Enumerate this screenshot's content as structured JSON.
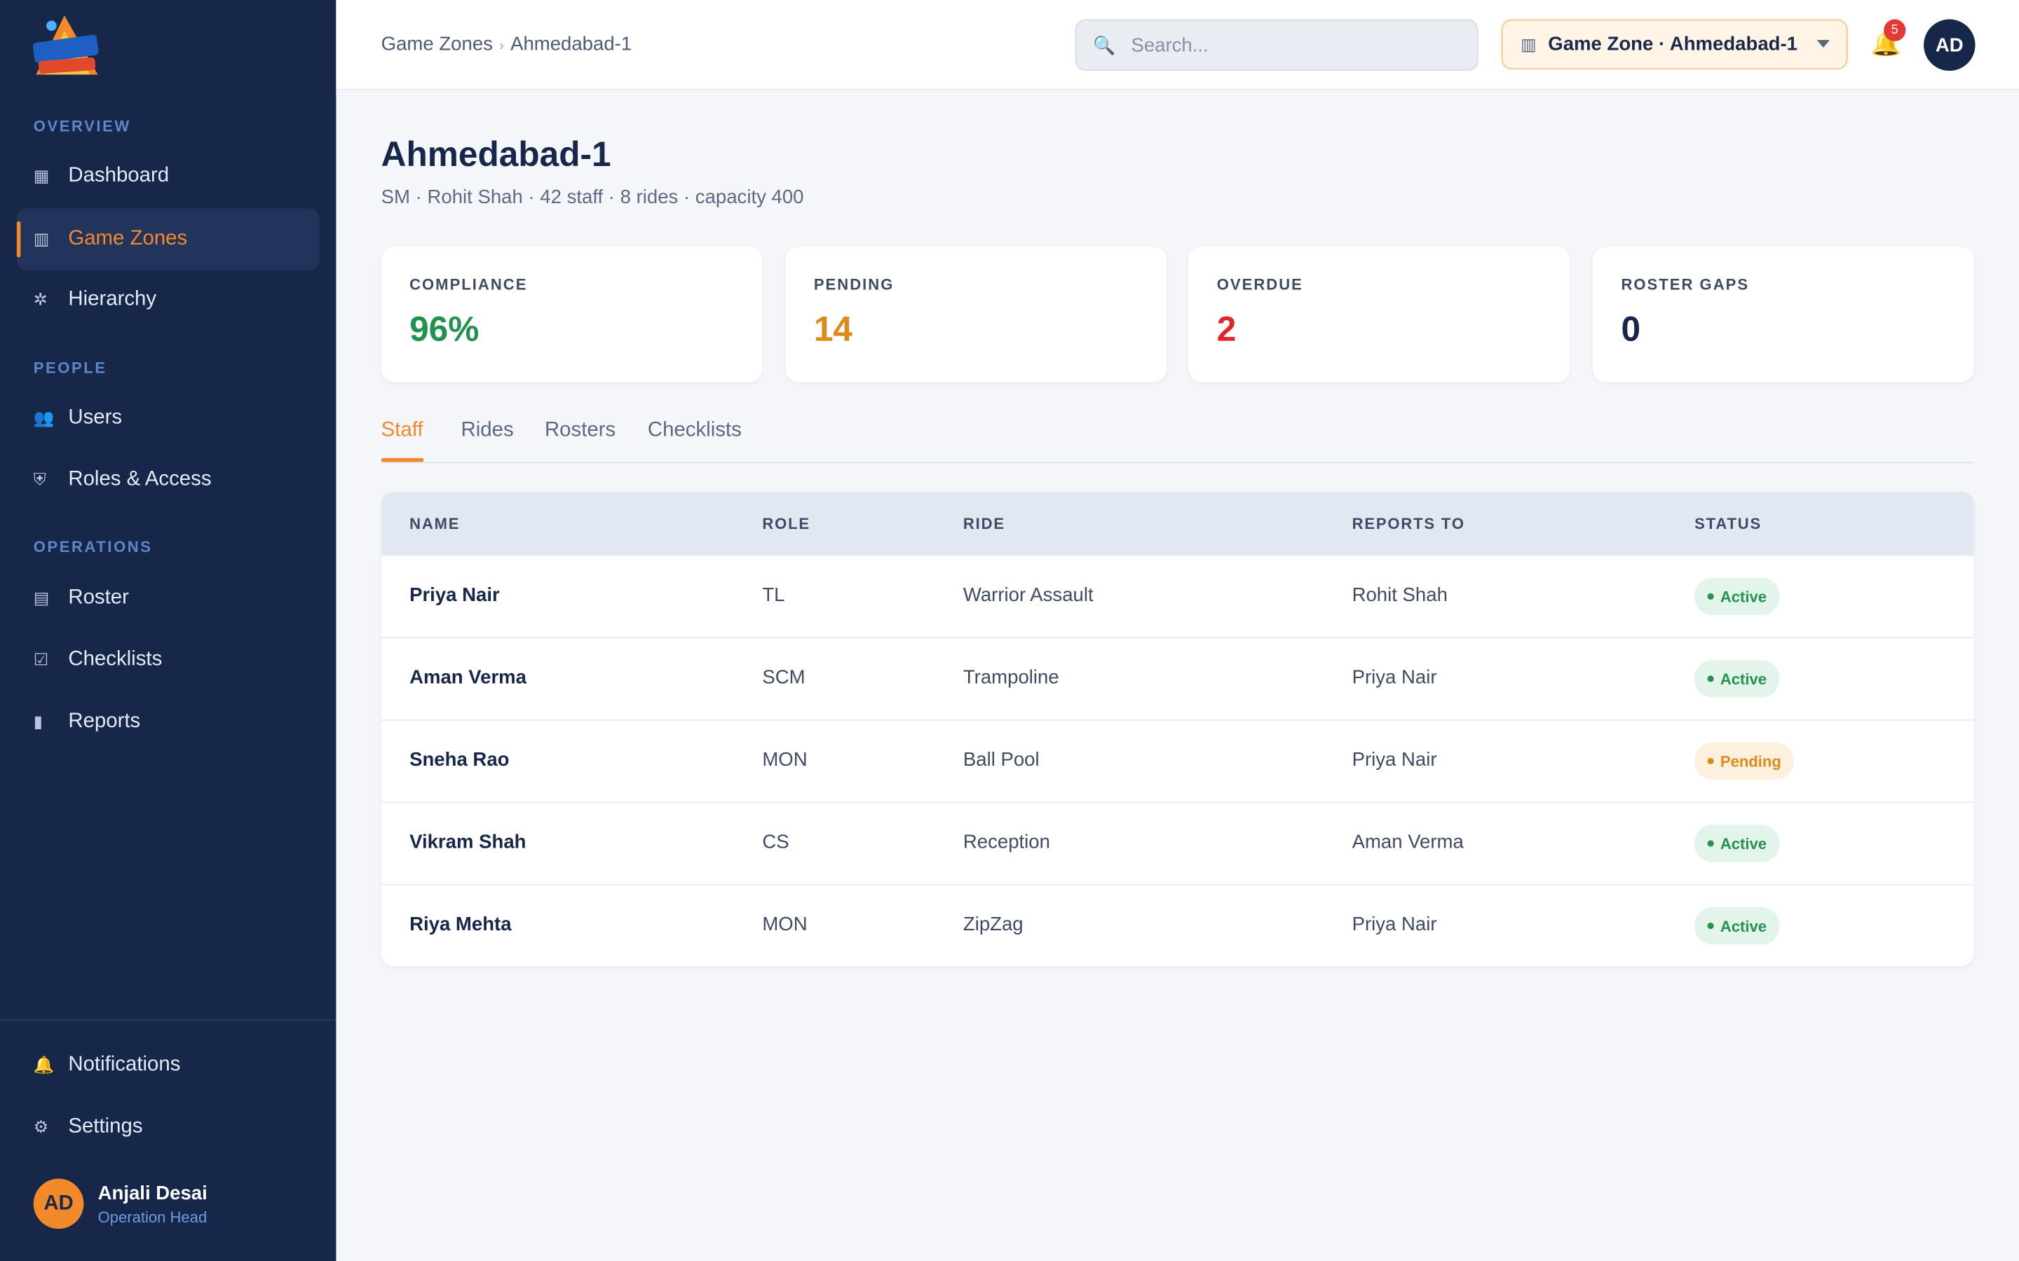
{
  "sidebar": {
    "logo_alt": "brand-logo",
    "sections": {
      "overview": "OVERVIEW",
      "people": "PEOPLE",
      "operations": "OPERATIONS"
    },
    "items": {
      "dashboard": "Dashboard",
      "game_zones": "Game Zones",
      "hierarchy": "Hierarchy",
      "users": "Users",
      "roles": "Roles & Access",
      "roster": "Roster",
      "checklists": "Checklists",
      "reports": "Reports",
      "notifications": "Notifications",
      "settings": "Settings"
    },
    "active_item": "game_zones",
    "user": {
      "initials": "AD",
      "name": "Anjali Desai",
      "role": "Operation Head"
    }
  },
  "topbar": {
    "breadcrumb": [
      "Game Zones",
      "Ahmedabad-1"
    ],
    "search_placeholder": "Search...",
    "zone_selector": "Game Zone · Ahmedabad-1",
    "notification_count": "5",
    "avatar_initials": "AD"
  },
  "page": {
    "title": "Ahmedabad-1",
    "subtitle": "SM · Rohit Shah · 42 staff · 8 rides · capacity 400"
  },
  "kpis": [
    {
      "label": "COMPLIANCE",
      "value": "96%",
      "color": "#22924f"
    },
    {
      "label": "PENDING",
      "value": "14",
      "color": "#de8a1a"
    },
    {
      "label": "OVERDUE",
      "value": "2",
      "color": "#e0262d"
    },
    {
      "label": "ROSTER GAPS",
      "value": "0",
      "color": "#17274a"
    }
  ],
  "tabs": [
    "Staff",
    "Rides",
    "Rosters",
    "Checklists"
  ],
  "active_tab": "Staff",
  "table": {
    "headers": [
      "NAME",
      "ROLE",
      "RIDE",
      "REPORTS TO",
      "STATUS"
    ],
    "rows": [
      {
        "name": "Priya Nair",
        "role": "TL",
        "ride": "Warrior Assault",
        "reports_to": "Rohit Shah",
        "status": "Active"
      },
      {
        "name": "Aman Verma",
        "role": "SCM",
        "ride": "Trampoline",
        "reports_to": "Priya Nair",
        "status": "Active"
      },
      {
        "name": "Sneha Rao",
        "role": "MON",
        "ride": "Ball Pool",
        "reports_to": "Priya Nair",
        "status": "Pending"
      },
      {
        "name": "Vikram Shah",
        "role": "CS",
        "ride": "Reception",
        "reports_to": "Aman Verma",
        "status": "Active"
      },
      {
        "name": "Riya Mehta",
        "role": "MON",
        "ride": "ZipZag",
        "reports_to": "Priya Nair",
        "status": "Active"
      }
    ]
  },
  "colors": {
    "accent": "#f28a2b",
    "sidebar_bg": "#17274a",
    "active_status": "#25924e",
    "pending_status": "#de8a1a"
  }
}
